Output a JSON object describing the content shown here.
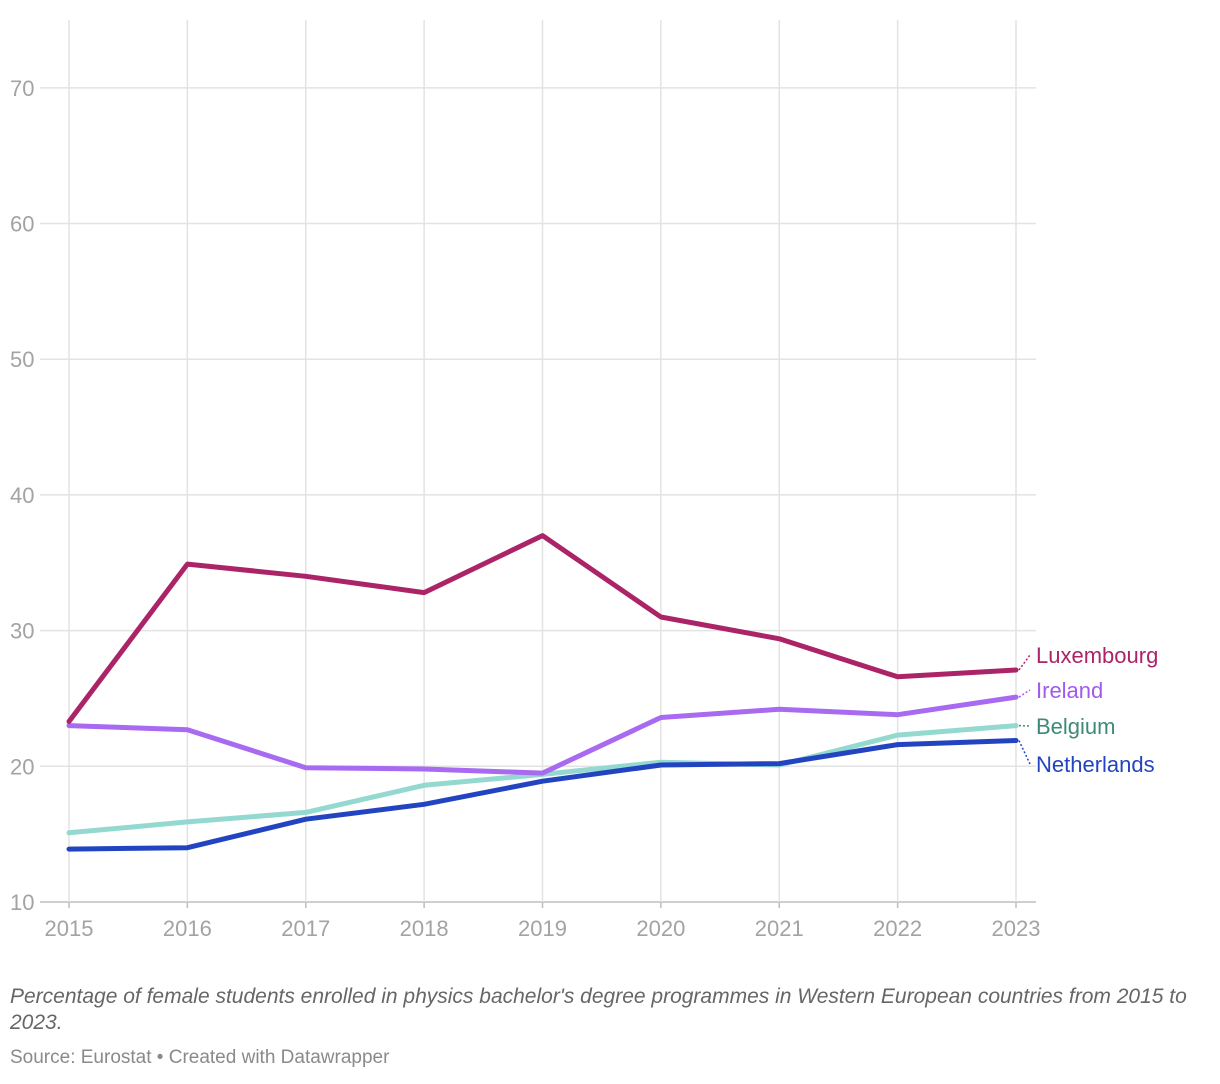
{
  "chart_data": {
    "type": "line",
    "x": [
      2015,
      2016,
      2017,
      2018,
      2019,
      2020,
      2021,
      2022,
      2023
    ],
    "x_tick_labels": [
      "2015",
      "2016",
      "2017",
      "2018",
      "2019",
      "2020",
      "2021",
      "2022",
      "2023"
    ],
    "ylim": [
      10,
      75
    ],
    "y_ticks": [
      10,
      20,
      30,
      40,
      50,
      60,
      70
    ],
    "y_tick_labels": [
      "10",
      "20",
      "30",
      "40",
      "50",
      "60",
      "70"
    ],
    "grid": true,
    "legend": "inline-right",
    "series": [
      {
        "name": "Luxembourg",
        "color": "#ac2468",
        "line_color": "#ac2468",
        "values": [
          23.3,
          34.9,
          34.0,
          32.8,
          37.0,
          31.0,
          29.4,
          26.6,
          27.1
        ]
      },
      {
        "name": "Ireland",
        "color": "#a259f0",
        "line_color": "#a86af0",
        "values": [
          23.0,
          22.7,
          19.9,
          19.8,
          19.5,
          23.6,
          24.2,
          23.8,
          25.1
        ]
      },
      {
        "name": "Belgium",
        "color": "#3d8a78",
        "line_color": "#93d9d0",
        "values": [
          15.1,
          15.9,
          16.6,
          18.6,
          19.4,
          20.3,
          20.1,
          22.3,
          23.0
        ]
      },
      {
        "name": "Netherlands",
        "color": "#2344c0",
        "line_color": "#2344c0",
        "values": [
          13.9,
          14.0,
          16.1,
          17.2,
          18.9,
          20.1,
          20.2,
          21.6,
          21.9
        ]
      }
    ],
    "caption": "Percentage of female students enrolled in physics bachelor's degree programmes in Western European countries from 2015 to 2023.",
    "source": "Source: Eurostat • Created with Datawrapper"
  }
}
